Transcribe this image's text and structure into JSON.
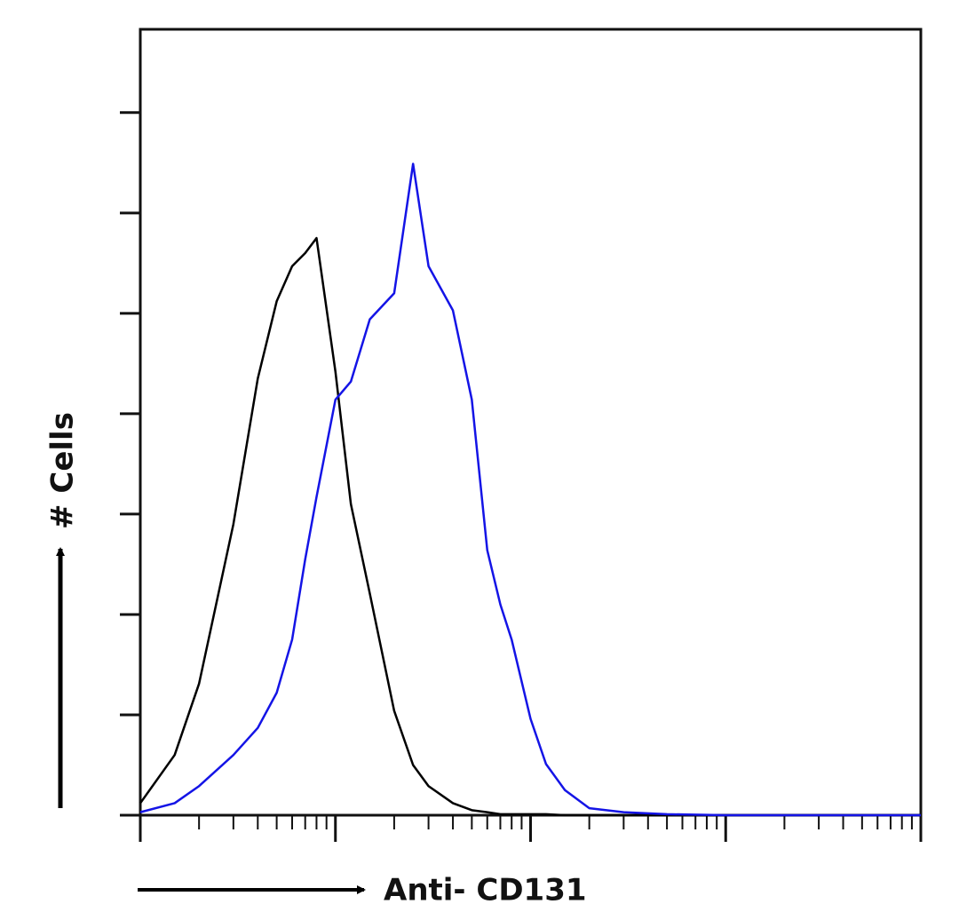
{
  "chart_data": {
    "type": "line",
    "y_label": "# Cells",
    "x_label": "Anti- CD131",
    "x": [
      1,
      1.5,
      2,
      3,
      4,
      5,
      6,
      7,
      8,
      10,
      12,
      15,
      20,
      25,
      30,
      40,
      50,
      60,
      70,
      80,
      100,
      120,
      150,
      200,
      300,
      500,
      1000,
      10000
    ],
    "series": [
      {
        "color": "#000000",
        "values": [
          0.12,
          0.6,
          1.31,
          2.9,
          4.35,
          5.12,
          5.47,
          5.6,
          5.75,
          4.42,
          3.1,
          2.21,
          1.04,
          0.5,
          0.29,
          0.12,
          0.05,
          0.03,
          0.01,
          0.01,
          0.01,
          0.01,
          0,
          0,
          0,
          0,
          0,
          0
        ]
      },
      {
        "color": "#1414e6",
        "values": [
          0.03,
          0.12,
          0.29,
          0.6,
          0.87,
          1.22,
          1.75,
          2.55,
          3.17,
          4.14,
          4.32,
          4.94,
          5.2,
          6.49,
          5.47,
          5.03,
          4.14,
          2.64,
          2.1,
          1.75,
          0.96,
          0.51,
          0.25,
          0.07,
          0.03,
          0.01,
          0,
          0
        ]
      }
    ],
    "xlim": [
      1,
      10000
    ],
    "xticks": [
      1,
      10,
      100,
      1000,
      10000
    ],
    "xscale": "log",
    "ylim": [
      0,
      7.83
    ],
    "yticks": [
      0,
      1,
      2,
      3,
      4,
      5,
      6,
      7
    ]
  }
}
